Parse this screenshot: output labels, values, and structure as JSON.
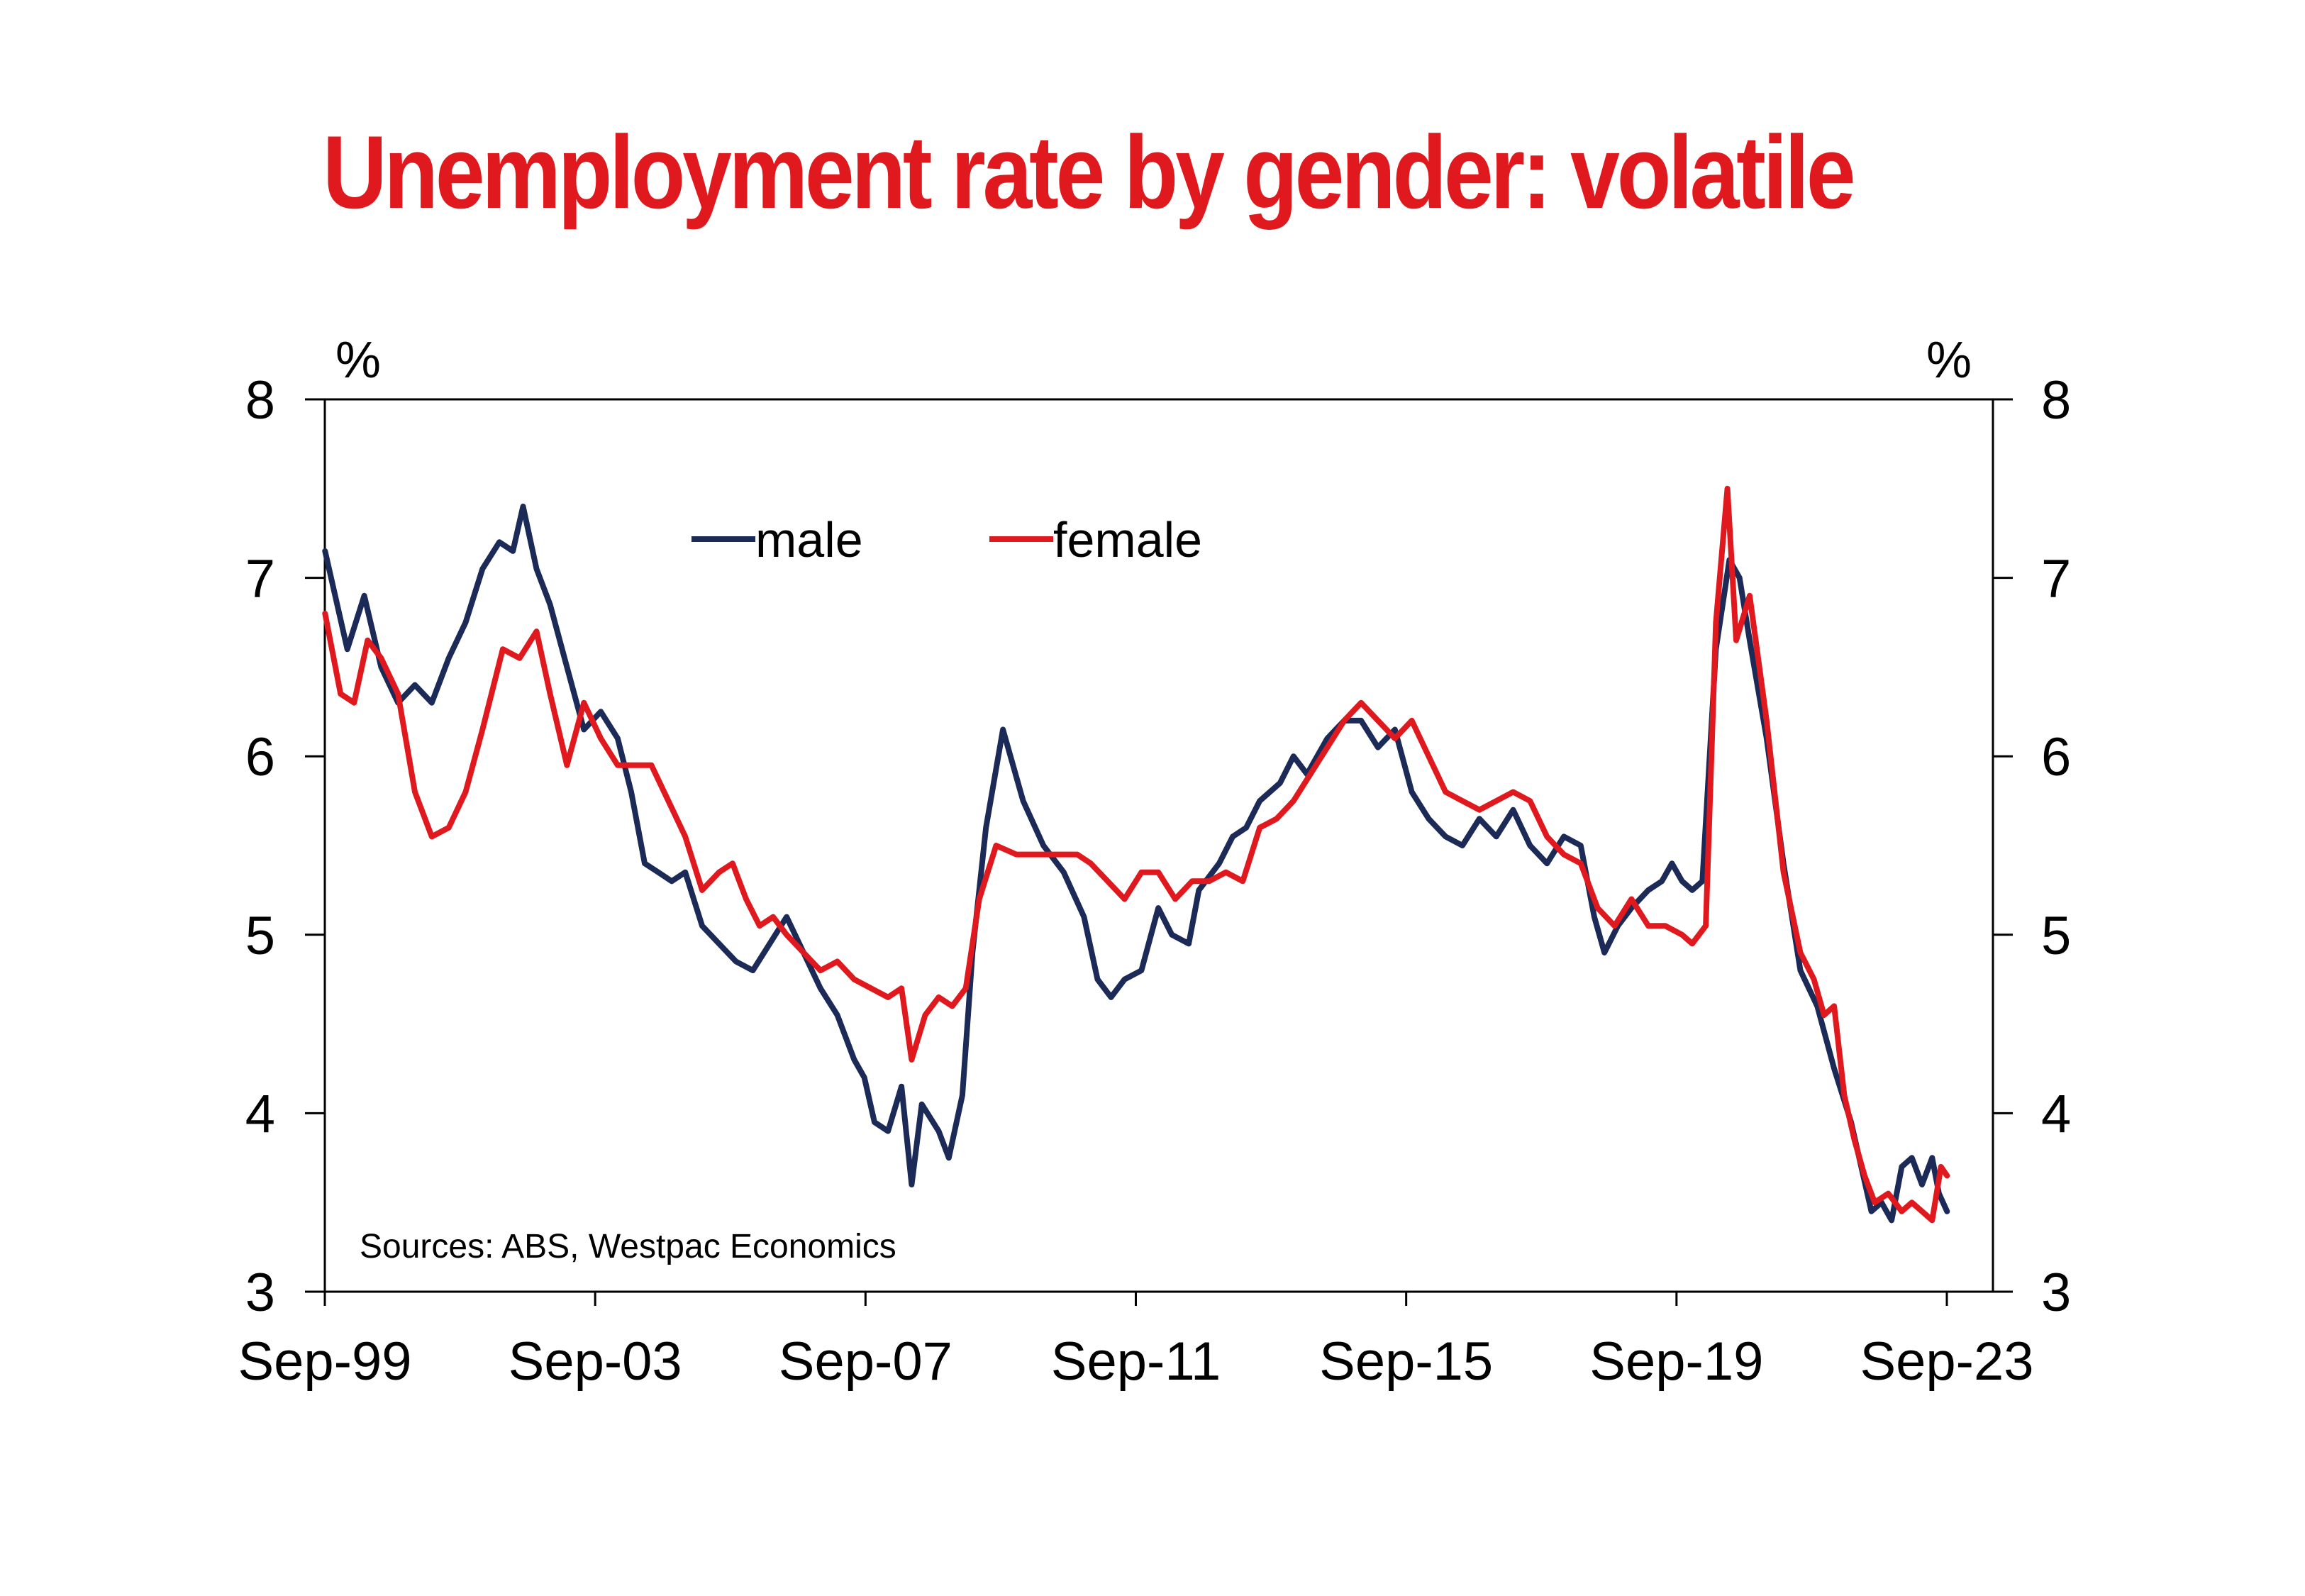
{
  "chart_data": {
    "type": "line",
    "title": "Unemployment rate by gender: volatile",
    "y_unit_left": "%",
    "y_unit_right": "%",
    "ylim": [
      3,
      8
    ],
    "y_ticks": [
      3,
      4,
      5,
      6,
      7,
      8
    ],
    "y_tick_labels": [
      "3",
      "4",
      "5",
      "6",
      "7",
      "8"
    ],
    "x_ticks": [
      1999.667,
      2003.667,
      2007.667,
      2011.667,
      2015.667,
      2019.667,
      2023.667
    ],
    "x_tick_labels": [
      "Sep-99",
      "Sep-03",
      "Sep-07",
      "Sep-11",
      "Sep-15",
      "Sep-19",
      "Sep-23"
    ],
    "xlim": [
      1999.667,
      2023.667
    ],
    "source_note": "Sources: ABS, Westpac Economics",
    "legend_position": "top-center",
    "grid": false,
    "series": [
      {
        "name": "male",
        "color": "#1b2a57",
        "points": [
          [
            1999.67,
            7.15
          ],
          [
            2000.0,
            6.6
          ],
          [
            2000.25,
            6.9
          ],
          [
            2000.5,
            6.5
          ],
          [
            2000.75,
            6.3
          ],
          [
            2001.0,
            6.4
          ],
          [
            2001.25,
            6.3
          ],
          [
            2001.5,
            6.55
          ],
          [
            2001.75,
            6.75
          ],
          [
            2002.0,
            7.05
          ],
          [
            2002.25,
            7.2
          ],
          [
            2002.45,
            7.15
          ],
          [
            2002.6,
            7.4
          ],
          [
            2002.8,
            7.05
          ],
          [
            2003.0,
            6.85
          ],
          [
            2003.25,
            6.5
          ],
          [
            2003.5,
            6.15
          ],
          [
            2003.75,
            6.25
          ],
          [
            2004.0,
            6.1
          ],
          [
            2004.2,
            5.8
          ],
          [
            2004.4,
            5.4
          ],
          [
            2004.6,
            5.35
          ],
          [
            2004.8,
            5.3
          ],
          [
            2005.0,
            5.35
          ],
          [
            2005.25,
            5.05
          ],
          [
            2005.5,
            4.95
          ],
          [
            2005.75,
            4.85
          ],
          [
            2006.0,
            4.8
          ],
          [
            2006.25,
            4.95
          ],
          [
            2006.5,
            5.1
          ],
          [
            2006.75,
            4.9
          ],
          [
            2007.0,
            4.7
          ],
          [
            2007.25,
            4.55
          ],
          [
            2007.5,
            4.3
          ],
          [
            2007.65,
            4.2
          ],
          [
            2007.8,
            3.95
          ],
          [
            2008.0,
            3.9
          ],
          [
            2008.2,
            4.15
          ],
          [
            2008.35,
            3.6
          ],
          [
            2008.5,
            4.05
          ],
          [
            2008.75,
            3.9
          ],
          [
            2008.9,
            3.75
          ],
          [
            2009.1,
            4.1
          ],
          [
            2009.25,
            4.9
          ],
          [
            2009.45,
            5.6
          ],
          [
            2009.7,
            6.15
          ],
          [
            2010.0,
            5.75
          ],
          [
            2010.3,
            5.5
          ],
          [
            2010.6,
            5.35
          ],
          [
            2010.9,
            5.1
          ],
          [
            2011.1,
            4.75
          ],
          [
            2011.3,
            4.65
          ],
          [
            2011.5,
            4.75
          ],
          [
            2011.75,
            4.8
          ],
          [
            2012.0,
            5.15
          ],
          [
            2012.2,
            5.0
          ],
          [
            2012.45,
            4.95
          ],
          [
            2012.6,
            5.25
          ],
          [
            2012.9,
            5.4
          ],
          [
            2013.1,
            5.55
          ],
          [
            2013.3,
            5.6
          ],
          [
            2013.5,
            5.75
          ],
          [
            2013.8,
            5.85
          ],
          [
            2014.0,
            6.0
          ],
          [
            2014.2,
            5.9
          ],
          [
            2014.5,
            6.1
          ],
          [
            2014.75,
            6.2
          ],
          [
            2015.0,
            6.2
          ],
          [
            2015.25,
            6.05
          ],
          [
            2015.5,
            6.15
          ],
          [
            2015.75,
            5.8
          ],
          [
            2016.0,
            5.65
          ],
          [
            2016.25,
            5.55
          ],
          [
            2016.5,
            5.5
          ],
          [
            2016.75,
            5.65
          ],
          [
            2017.0,
            5.55
          ],
          [
            2017.25,
            5.7
          ],
          [
            2017.5,
            5.5
          ],
          [
            2017.75,
            5.4
          ],
          [
            2018.0,
            5.55
          ],
          [
            2018.25,
            5.5
          ],
          [
            2018.45,
            5.1
          ],
          [
            2018.6,
            4.9
          ],
          [
            2018.8,
            5.05
          ],
          [
            2019.0,
            5.15
          ],
          [
            2019.25,
            5.25
          ],
          [
            2019.45,
            5.3
          ],
          [
            2019.6,
            5.4
          ],
          [
            2019.75,
            5.3
          ],
          [
            2019.9,
            5.25
          ],
          [
            2020.05,
            5.3
          ],
          [
            2020.25,
            6.6
          ],
          [
            2020.45,
            7.1
          ],
          [
            2020.6,
            7.0
          ],
          [
            2020.75,
            6.65
          ],
          [
            2021.0,
            6.1
          ],
          [
            2021.25,
            5.4
          ],
          [
            2021.5,
            4.8
          ],
          [
            2021.75,
            4.6
          ],
          [
            2022.0,
            4.25
          ],
          [
            2022.25,
            3.95
          ],
          [
            2022.4,
            3.7
          ],
          [
            2022.55,
            3.45
          ],
          [
            2022.7,
            3.5
          ],
          [
            2022.85,
            3.4
          ],
          [
            2023.0,
            3.7
          ],
          [
            2023.15,
            3.75
          ],
          [
            2023.3,
            3.6
          ],
          [
            2023.45,
            3.75
          ],
          [
            2023.55,
            3.55
          ],
          [
            2023.67,
            3.45
          ]
        ]
      },
      {
        "name": "female",
        "color": "#e0191e",
        "points": [
          [
            1999.67,
            6.8
          ],
          [
            1999.9,
            6.35
          ],
          [
            2000.1,
            6.3
          ],
          [
            2000.3,
            6.65
          ],
          [
            2000.5,
            6.55
          ],
          [
            2000.75,
            6.35
          ],
          [
            2001.0,
            5.8
          ],
          [
            2001.25,
            5.55
          ],
          [
            2001.5,
            5.6
          ],
          [
            2001.75,
            5.8
          ],
          [
            2002.0,
            6.15
          ],
          [
            2002.3,
            6.6
          ],
          [
            2002.55,
            6.55
          ],
          [
            2002.8,
            6.7
          ],
          [
            2003.0,
            6.35
          ],
          [
            2003.25,
            5.95
          ],
          [
            2003.5,
            6.3
          ],
          [
            2003.75,
            6.1
          ],
          [
            2004.0,
            5.95
          ],
          [
            2004.25,
            5.95
          ],
          [
            2004.5,
            5.95
          ],
          [
            2004.75,
            5.75
          ],
          [
            2005.0,
            5.55
          ],
          [
            2005.25,
            5.25
          ],
          [
            2005.5,
            5.35
          ],
          [
            2005.7,
            5.4
          ],
          [
            2005.9,
            5.2
          ],
          [
            2006.1,
            5.05
          ],
          [
            2006.3,
            5.1
          ],
          [
            2006.5,
            5.0
          ],
          [
            2006.75,
            4.9
          ],
          [
            2007.0,
            4.8
          ],
          [
            2007.25,
            4.85
          ],
          [
            2007.5,
            4.75
          ],
          [
            2007.75,
            4.7
          ],
          [
            2008.0,
            4.65
          ],
          [
            2008.2,
            4.7
          ],
          [
            2008.35,
            4.3
          ],
          [
            2008.55,
            4.55
          ],
          [
            2008.75,
            4.65
          ],
          [
            2008.95,
            4.6
          ],
          [
            2009.15,
            4.7
          ],
          [
            2009.35,
            5.2
          ],
          [
            2009.6,
            5.5
          ],
          [
            2009.9,
            5.45
          ],
          [
            2010.2,
            5.45
          ],
          [
            2010.5,
            5.45
          ],
          [
            2010.8,
            5.45
          ],
          [
            2011.0,
            5.4
          ],
          [
            2011.25,
            5.3
          ],
          [
            2011.5,
            5.2
          ],
          [
            2011.75,
            5.35
          ],
          [
            2012.0,
            5.35
          ],
          [
            2012.25,
            5.2
          ],
          [
            2012.5,
            5.3
          ],
          [
            2012.75,
            5.3
          ],
          [
            2013.0,
            5.35
          ],
          [
            2013.25,
            5.3
          ],
          [
            2013.5,
            5.6
          ],
          [
            2013.75,
            5.65
          ],
          [
            2014.0,
            5.75
          ],
          [
            2014.25,
            5.9
          ],
          [
            2014.5,
            6.05
          ],
          [
            2014.75,
            6.2
          ],
          [
            2015.0,
            6.3
          ],
          [
            2015.25,
            6.2
          ],
          [
            2015.5,
            6.1
          ],
          [
            2015.75,
            6.2
          ],
          [
            2016.0,
            6.0
          ],
          [
            2016.25,
            5.8
          ],
          [
            2016.5,
            5.75
          ],
          [
            2016.75,
            5.7
          ],
          [
            2017.0,
            5.75
          ],
          [
            2017.25,
            5.8
          ],
          [
            2017.5,
            5.75
          ],
          [
            2017.75,
            5.55
          ],
          [
            2018.0,
            5.45
          ],
          [
            2018.25,
            5.4
          ],
          [
            2018.5,
            5.15
          ],
          [
            2018.75,
            5.05
          ],
          [
            2019.0,
            5.2
          ],
          [
            2019.25,
            5.05
          ],
          [
            2019.5,
            5.05
          ],
          [
            2019.75,
            5.0
          ],
          [
            2019.9,
            4.95
          ],
          [
            2020.1,
            5.05
          ],
          [
            2020.25,
            6.75
          ],
          [
            2020.42,
            7.5
          ],
          [
            2020.55,
            6.65
          ],
          [
            2020.75,
            6.9
          ],
          [
            2021.0,
            6.2
          ],
          [
            2021.25,
            5.35
          ],
          [
            2021.5,
            4.9
          ],
          [
            2021.7,
            4.75
          ],
          [
            2021.85,
            4.55
          ],
          [
            2022.0,
            4.6
          ],
          [
            2022.15,
            4.1
          ],
          [
            2022.3,
            3.85
          ],
          [
            2022.45,
            3.65
          ],
          [
            2022.6,
            3.5
          ],
          [
            2022.8,
            3.55
          ],
          [
            2023.0,
            3.45
          ],
          [
            2023.15,
            3.5
          ],
          [
            2023.3,
            3.45
          ],
          [
            2023.45,
            3.4
          ],
          [
            2023.58,
            3.7
          ],
          [
            2023.67,
            3.65
          ]
        ]
      }
    ]
  }
}
